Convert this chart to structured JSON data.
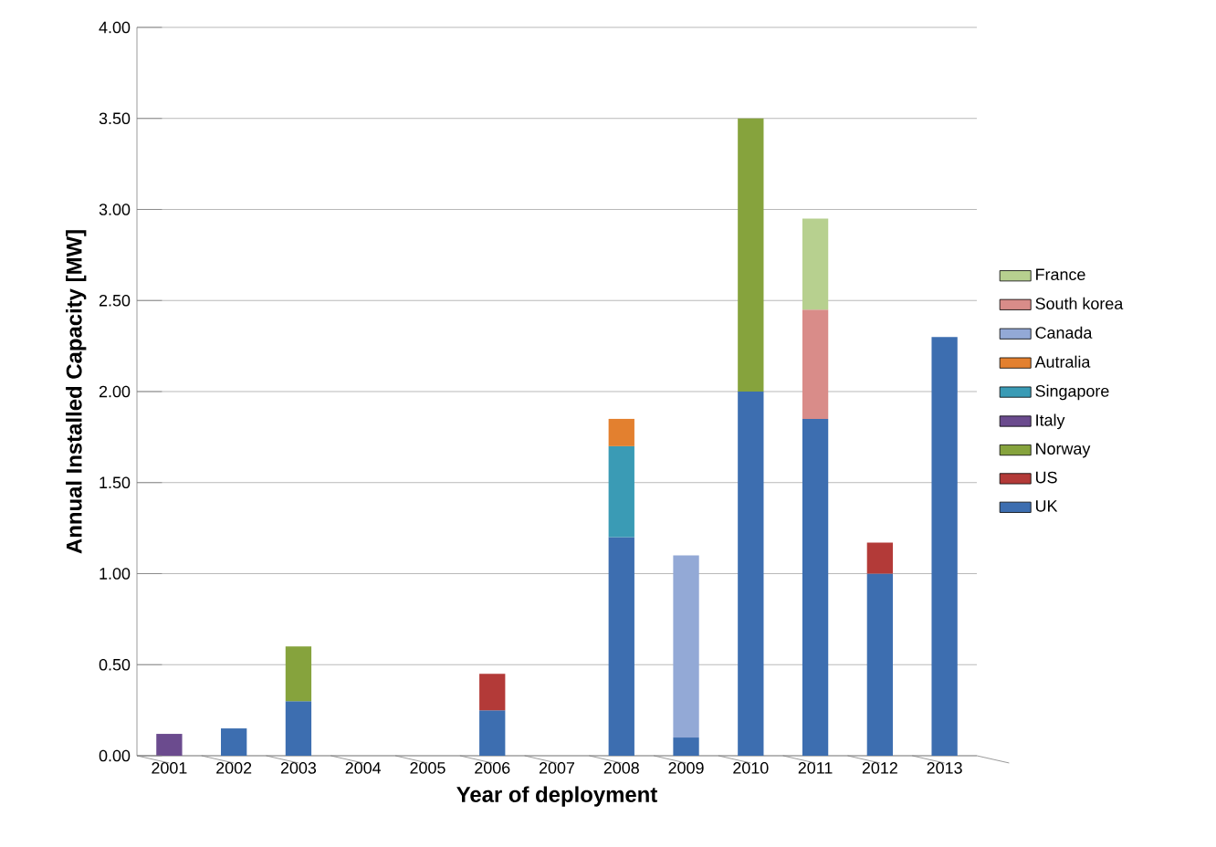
{
  "chart_data": {
    "type": "bar",
    "stacked": true,
    "xlabel": "Year of deployment",
    "ylabel": "Annual Installed Capacity [MW]",
    "categories": [
      "2001",
      "2002",
      "2003",
      "2004",
      "2005",
      "2006",
      "2007",
      "2008",
      "2009",
      "2010",
      "2011",
      "2012",
      "2013"
    ],
    "series": [
      {
        "name": "UK",
        "color": "#3d6eb0",
        "values": [
          null,
          0.15,
          0.3,
          null,
          null,
          0.25,
          null,
          1.2,
          0.1,
          2.0,
          1.85,
          1.0,
          2.3
        ]
      },
      {
        "name": "US",
        "color": "#b33a38",
        "values": [
          null,
          null,
          null,
          null,
          null,
          0.2,
          null,
          null,
          null,
          null,
          null,
          0.17,
          null
        ]
      },
      {
        "name": "Norway",
        "color": "#86a33d",
        "values": [
          null,
          null,
          0.3,
          null,
          null,
          null,
          null,
          null,
          null,
          1.5,
          null,
          null,
          null
        ]
      },
      {
        "name": "Italy",
        "color": "#6b4b8e",
        "values": [
          0.12,
          null,
          null,
          null,
          null,
          null,
          null,
          null,
          null,
          null,
          null,
          null,
          null
        ]
      },
      {
        "name": "Singapore",
        "color": "#3a9bb5",
        "values": [
          null,
          null,
          null,
          null,
          null,
          null,
          null,
          0.5,
          null,
          null,
          null,
          null,
          null
        ]
      },
      {
        "name": "Autralia",
        "color": "#e3802f",
        "values": [
          null,
          null,
          null,
          null,
          null,
          null,
          null,
          0.15,
          null,
          null,
          null,
          null,
          null
        ]
      },
      {
        "name": "Canada",
        "color": "#93a9d6",
        "values": [
          null,
          null,
          null,
          null,
          null,
          null,
          null,
          null,
          1.0,
          null,
          null,
          null,
          null
        ]
      },
      {
        "name": "South korea",
        "color": "#d98c89",
        "values": [
          null,
          null,
          null,
          null,
          null,
          null,
          null,
          null,
          null,
          null,
          0.6,
          null,
          null
        ]
      },
      {
        "name": "France",
        "color": "#b7d08f",
        "values": [
          null,
          null,
          null,
          null,
          null,
          null,
          null,
          null,
          null,
          null,
          0.5,
          null,
          null
        ]
      }
    ],
    "ylim": [
      0,
      4
    ],
    "yticks": [
      {
        "value": 0,
        "label": "0.00"
      },
      {
        "value": 0.5,
        "label": "0.50"
      },
      {
        "value": 1,
        "label": "1.00"
      },
      {
        "value": 1.5,
        "label": "1.50"
      },
      {
        "value": 2,
        "label": "2.00"
      },
      {
        "value": 2.5,
        "label": "2.50"
      },
      {
        "value": 3,
        "label": "3.00"
      },
      {
        "value": 3.5,
        "label": "3.50"
      },
      {
        "value": 4,
        "label": "4.00"
      }
    ],
    "grid": "y",
    "legend": "right"
  }
}
